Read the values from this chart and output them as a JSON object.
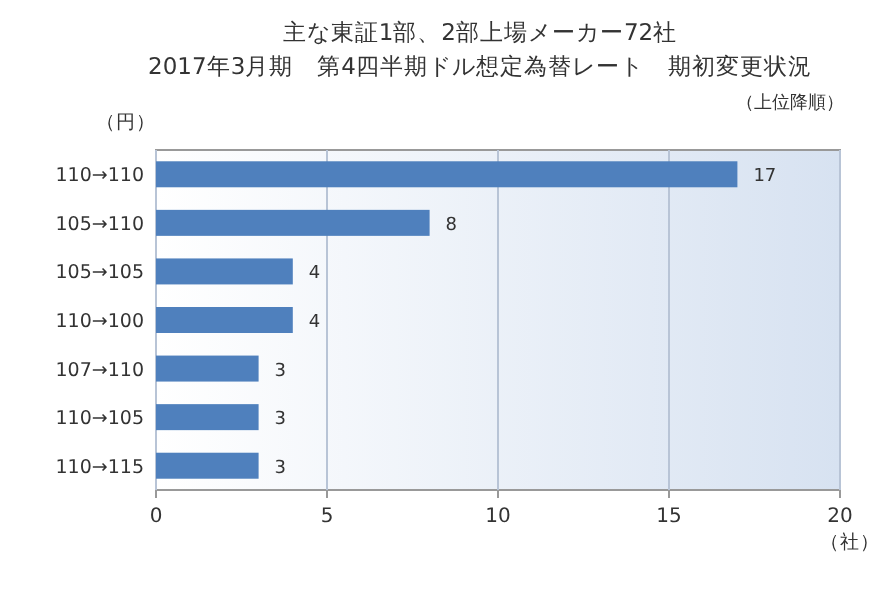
{
  "chart_data": {
    "type": "bar",
    "orientation": "horizontal",
    "title": "主な東証1部、2部上場メーカー72社\n2017年3月期　第4四半期ドル想定為替レート　期初変更状況",
    "subtitle": "（上位降順）",
    "ylabel": "（円）",
    "xlabel": "（社）",
    "categories": [
      "110→110",
      "105→110",
      "105→105",
      "110→100",
      "107→110",
      "110→105",
      "110→115"
    ],
    "values": [
      17,
      8,
      4,
      4,
      3,
      3,
      3
    ],
    "color": "#4f80bd",
    "xlim": [
      0,
      20
    ],
    "xticks": [
      0,
      5,
      10,
      15,
      20
    ],
    "grid": "x",
    "data_labels": true
  }
}
